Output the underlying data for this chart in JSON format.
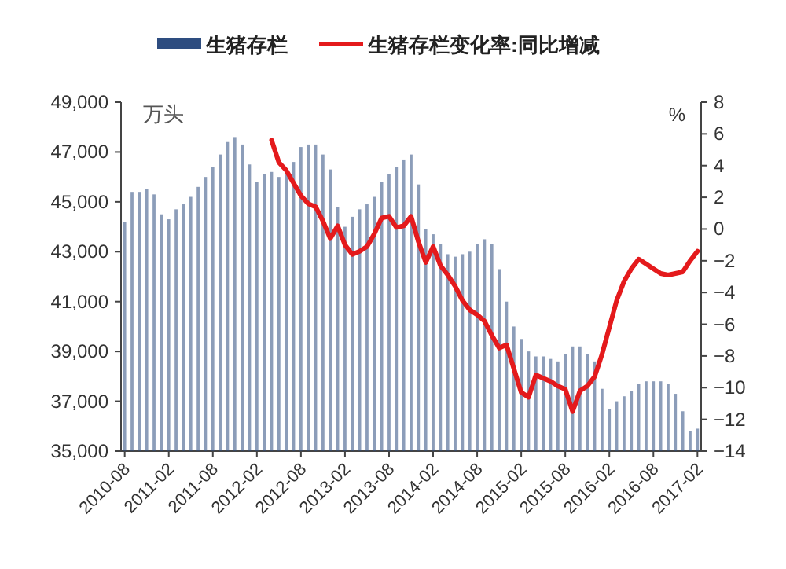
{
  "chart_data": {
    "type": "bar",
    "legend": "top",
    "ylabel": "万头",
    "y2label": "%",
    "categories": [
      "2010-08",
      null,
      null,
      null,
      null,
      null,
      "2011-02",
      null,
      null,
      null,
      null,
      null,
      "2011-08",
      null,
      null,
      null,
      null,
      null,
      "2012-02",
      null,
      null,
      null,
      null,
      null,
      "2012-08",
      null,
      null,
      null,
      null,
      null,
      "2013-02",
      null,
      null,
      null,
      null,
      null,
      "2013-08",
      null,
      null,
      null,
      null,
      null,
      "2014-02",
      null,
      null,
      null,
      null,
      null,
      "2014-08",
      null,
      null,
      null,
      null,
      null,
      "2015-02",
      null,
      null,
      null,
      null,
      null,
      "2015-08",
      null,
      null,
      null,
      null,
      null,
      "2016-02",
      null,
      null,
      null,
      null,
      null,
      "2016-08",
      null,
      null,
      null,
      null,
      null,
      "2017-02"
    ],
    "ylim": [
      35000,
      49000
    ],
    "yticks": [
      {
        "value": 35000,
        "label": "35,000"
      },
      {
        "value": 37000,
        "label": "37,000"
      },
      {
        "value": 39000,
        "label": "39,000"
      },
      {
        "value": 41000,
        "label": "41,000"
      },
      {
        "value": 43000,
        "label": "43,000"
      },
      {
        "value": 45000,
        "label": "45,000"
      },
      {
        "value": 47000,
        "label": "47,000"
      },
      {
        "value": 49000,
        "label": "49,000"
      }
    ],
    "y2lim": [
      -14,
      8
    ],
    "y2ticks": [
      -14,
      -12,
      -10,
      -8,
      -6,
      -4,
      -2,
      0,
      2,
      4,
      6,
      8
    ],
    "series": [
      {
        "name": "生猪存栏",
        "color": "#2e4d80",
        "values": [
          44200,
          45400,
          45400,
          45500,
          45300,
          44500,
          44300,
          44700,
          44900,
          45200,
          45600,
          46000,
          46400,
          46900,
          47400,
          47600,
          47300,
          46500,
          45800,
          46100,
          46200,
          46000,
          46100,
          46600,
          47200,
          47300,
          47300,
          46900,
          46300,
          44800,
          44000,
          44400,
          44700,
          44900,
          45200,
          45800,
          46100,
          46400,
          46700,
          46900,
          45700,
          43900,
          43700,
          43300,
          42900,
          42800,
          42900,
          43000,
          43300,
          43500,
          43300,
          42300,
          41000,
          40000,
          39500,
          39000,
          38800,
          38800,
          38700,
          38600,
          38900,
          39200,
          39200,
          38900,
          38600,
          37500,
          36700,
          37000,
          37200,
          37400,
          37700,
          37800,
          37800,
          37800,
          37700,
          37300,
          36600,
          35800,
          35900
        ]
      },
      {
        "name": "生猪存栏变化率:同比增减",
        "type": "line",
        "axis": "y2",
        "color": "#e41a1c",
        "values": [
          null,
          null,
          null,
          null,
          null,
          null,
          null,
          null,
          null,
          null,
          null,
          null,
          null,
          null,
          null,
          null,
          null,
          null,
          null,
          null,
          5.6,
          4.2,
          3.7,
          2.9,
          2.1,
          1.6,
          1.4,
          0.5,
          -0.6,
          0.2,
          -1.0,
          -1.6,
          -1.4,
          -1.1,
          -0.3,
          0.7,
          0.8,
          0.1,
          0.2,
          0.8,
          -0.8,
          -2.1,
          -1.1,
          -2.3,
          -2.9,
          -3.6,
          -4.5,
          -5.1,
          -5.4,
          -5.8,
          -6.7,
          -7.5,
          -7.3,
          -8.8,
          -10.3,
          -10.6,
          -9.2,
          -9.4,
          -9.6,
          -9.9,
          -10.1,
          -11.5,
          -10.2,
          -9.9,
          -9.3,
          -7.9,
          -6.2,
          -4.5,
          -3.3,
          -2.5,
          -1.9,
          -2.2,
          -2.5,
          -2.8,
          -2.9,
          -2.8,
          -2.7,
          -2.0,
          -1.4
        ]
      }
    ]
  }
}
